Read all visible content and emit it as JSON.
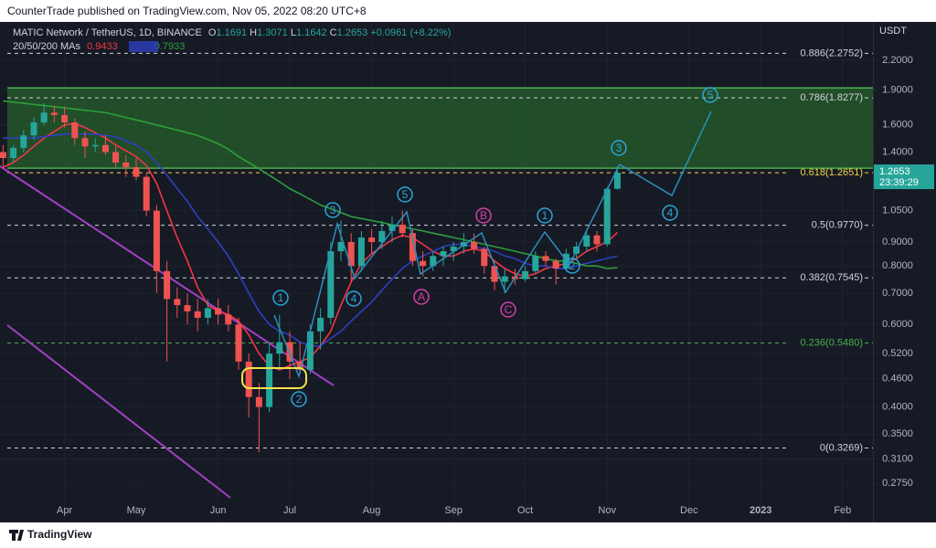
{
  "header_text": "CounterTrade published on TradingView.com, Nov 05, 2022 08:20 UTC+8",
  "footer_brand": "TradingView",
  "chart_data": {
    "type": "candlestick",
    "title": "MATIC Network / TetherUS, 1D, BINANCE",
    "ohlc_labels": [
      "O",
      "H",
      "L",
      "C"
    ],
    "change": {
      "value": 0.0961,
      "label": "+0.0961"
    },
    "change_pct": {
      "value": 8.22,
      "label": "(+8.22%)"
    },
    "ma_label": "20/50/200 MAs",
    "currency": "USDT",
    "countdown": "23:39:29",
    "log_scale": true,
    "grid": true,
    "up_color": "#26a69a",
    "down_color": "#ef5350",
    "categories": [
      null,
      null,
      null,
      null,
      null,
      null,
      "Apr",
      null,
      null,
      null,
      null,
      null,
      null,
      "May",
      null,
      null,
      null,
      null,
      null,
      null,
      null,
      "Jun",
      null,
      null,
      null,
      null,
      null,
      null,
      "Jul",
      null,
      null,
      null,
      null,
      null,
      null,
      null,
      "Aug",
      null,
      null,
      null,
      null,
      null,
      null,
      null,
      "Sep",
      null,
      null,
      null,
      null,
      null,
      null,
      "Oct",
      null,
      null,
      null,
      null,
      null,
      null,
      null,
      "Nov",
      null,
      null,
      null,
      null,
      null,
      null,
      null,
      "Dec",
      null,
      null,
      null,
      null,
      null,
      null,
      "2023",
      null,
      null,
      null,
      null,
      null,
      null,
      null,
      "Feb",
      null,
      null
    ],
    "open": [
      1.4,
      1.36,
      1.43,
      1.52,
      1.62,
      1.7,
      1.68,
      1.62,
      1.5,
      1.44,
      1.45,
      1.4,
      1.33,
      1.3,
      1.24,
      1.05,
      0.78,
      0.68,
      0.66,
      0.64,
      0.62,
      0.65,
      0.63,
      0.6,
      0.5,
      0.42,
      0.4,
      0.52,
      0.55,
      0.5,
      0.48,
      0.58,
      0.62,
      0.86,
      0.9,
      0.8,
      0.92,
      0.9,
      0.95,
      0.98,
      0.94,
      0.82,
      0.8,
      0.84,
      0.86,
      0.88,
      0.9,
      0.87,
      0.8,
      0.74,
      0.76,
      0.75,
      0.78,
      0.84,
      0.82,
      0.79,
      0.85,
      0.88,
      0.93,
      0.89,
      1.1691,
      null,
      null,
      null,
      null,
      null,
      null,
      null,
      null,
      null,
      null,
      null,
      null,
      null,
      null,
      null,
      null,
      null,
      null,
      null,
      null,
      null,
      null,
      null,
      null
    ],
    "high": [
      1.45,
      1.45,
      1.56,
      1.66,
      1.78,
      1.76,
      1.75,
      1.65,
      1.55,
      1.5,
      1.52,
      1.44,
      1.38,
      1.36,
      1.26,
      1.08,
      0.82,
      0.72,
      0.7,
      0.68,
      0.68,
      0.68,
      0.66,
      0.62,
      0.52,
      0.45,
      0.55,
      0.63,
      0.58,
      0.55,
      0.6,
      0.65,
      0.9,
      1.0,
      0.94,
      0.95,
      0.96,
      1.0,
      1.02,
      1.05,
      0.96,
      0.86,
      0.86,
      0.88,
      0.9,
      0.94,
      0.94,
      0.88,
      0.82,
      0.79,
      0.79,
      0.8,
      0.86,
      0.86,
      0.83,
      0.87,
      0.9,
      0.95,
      0.95,
      1.18,
      1.3071,
      null,
      null,
      null,
      null,
      null,
      null,
      null,
      null,
      null,
      null,
      null,
      null,
      null,
      null,
      null,
      null,
      null,
      null,
      null,
      null,
      null,
      null,
      null,
      null
    ],
    "low": [
      1.3,
      1.33,
      1.4,
      1.49,
      1.6,
      1.62,
      1.58,
      1.45,
      1.36,
      1.4,
      1.38,
      1.3,
      1.24,
      1.22,
      1.02,
      0.7,
      0.5,
      0.62,
      0.6,
      0.58,
      0.6,
      0.6,
      0.58,
      0.48,
      0.38,
      0.32,
      0.39,
      0.48,
      0.46,
      0.47,
      0.47,
      0.53,
      0.6,
      0.82,
      0.74,
      0.78,
      0.85,
      0.87,
      0.9,
      0.92,
      0.8,
      0.76,
      0.78,
      0.8,
      0.82,
      0.85,
      0.85,
      0.77,
      0.71,
      0.7,
      0.73,
      0.74,
      0.77,
      0.8,
      0.73,
      0.78,
      0.83,
      0.86,
      0.86,
      0.88,
      1.1642,
      null,
      null,
      null,
      null,
      null,
      null,
      null,
      null,
      null,
      null,
      null,
      null,
      null,
      null,
      null,
      null,
      null,
      null,
      null,
      null,
      null,
      null,
      null,
      null
    ],
    "close": [
      1.36,
      1.43,
      1.52,
      1.62,
      1.7,
      1.68,
      1.62,
      1.5,
      1.44,
      1.45,
      1.4,
      1.33,
      1.3,
      1.24,
      1.05,
      0.78,
      0.68,
      0.66,
      0.64,
      0.62,
      0.65,
      0.63,
      0.6,
      0.5,
      0.42,
      0.4,
      0.52,
      0.55,
      0.5,
      0.48,
      0.58,
      0.62,
      0.86,
      0.9,
      0.8,
      0.92,
      0.9,
      0.95,
      0.98,
      0.94,
      0.82,
      0.8,
      0.84,
      0.86,
      0.88,
      0.9,
      0.87,
      0.8,
      0.74,
      0.76,
      0.75,
      0.78,
      0.84,
      0.82,
      0.79,
      0.85,
      0.88,
      0.93,
      0.89,
      1.169,
      1.2653,
      null,
      null,
      null,
      null,
      null,
      null,
      null,
      null,
      null,
      null,
      null,
      null,
      null,
      null,
      null,
      null,
      null,
      null,
      null,
      null,
      null,
      null,
      null,
      null
    ],
    "moving_averages": [
      {
        "color": "#f23645",
        "values": [
          1.3,
          1.33,
          1.38,
          1.44,
          1.5,
          1.55,
          1.6,
          1.61,
          1.58,
          1.54,
          1.5,
          1.45,
          1.41,
          1.37,
          1.31,
          1.2,
          1.05,
          0.92,
          0.82,
          0.72,
          0.66,
          0.64,
          0.63,
          0.61,
          0.57,
          0.52,
          0.49,
          0.48,
          0.49,
          0.5,
          0.51,
          0.54,
          0.58,
          0.66,
          0.74,
          0.81,
          0.85,
          0.88,
          0.91,
          0.93,
          0.92,
          0.89,
          0.86,
          0.84,
          0.84,
          0.86,
          0.87,
          0.86,
          0.82,
          0.79,
          0.77,
          0.76,
          0.77,
          0.79,
          0.8,
          0.81,
          0.83,
          0.86,
          0.88,
          0.9,
          0.9433,
          null,
          null,
          null,
          null,
          null,
          null,
          null,
          null,
          null,
          null,
          null,
          null,
          null,
          null,
          null,
          null,
          null,
          null,
          null,
          null,
          null,
          null,
          null,
          null
        ]
      },
      {
        "color": "#2e3fbf",
        "values": [
          1.5,
          1.5,
          1.5,
          1.5,
          1.51,
          1.52,
          1.53,
          1.53,
          1.53,
          1.53,
          1.52,
          1.51,
          1.48,
          1.45,
          1.4,
          1.33,
          1.25,
          1.17,
          1.1,
          1.02,
          0.96,
          0.9,
          0.84,
          0.77,
          0.7,
          0.64,
          0.6,
          0.58,
          0.57,
          0.55,
          0.54,
          0.54,
          0.56,
          0.58,
          0.61,
          0.64,
          0.67,
          0.71,
          0.75,
          0.79,
          0.82,
          0.84,
          0.86,
          0.88,
          0.89,
          0.89,
          0.88,
          0.87,
          0.86,
          0.84,
          0.83,
          0.81,
          0.8,
          0.8,
          0.79,
          0.79,
          0.8,
          0.81,
          0.82,
          0.83,
          0.84,
          null,
          null,
          null,
          null,
          null,
          null,
          null,
          null,
          null,
          null,
          null,
          null,
          null,
          null,
          null,
          null,
          null,
          null,
          null,
          null,
          null,
          null,
          null,
          null
        ]
      },
      {
        "color": "#2e9e3a",
        "values": [
          1.8,
          1.79,
          1.78,
          1.77,
          1.76,
          1.75,
          1.74,
          1.73,
          1.72,
          1.71,
          1.7,
          1.68,
          1.66,
          1.64,
          1.62,
          1.6,
          1.58,
          1.56,
          1.54,
          1.52,
          1.49,
          1.46,
          1.42,
          1.37,
          1.33,
          1.29,
          1.25,
          1.21,
          1.17,
          1.14,
          1.11,
          1.08,
          1.06,
          1.04,
          1.02,
          1.01,
          1.0,
          0.99,
          0.98,
          0.97,
          0.96,
          0.95,
          0.94,
          0.93,
          0.92,
          0.91,
          0.9,
          0.89,
          0.88,
          0.87,
          0.86,
          0.85,
          0.84,
          0.83,
          0.82,
          0.82,
          0.81,
          0.8,
          0.8,
          0.79,
          0.7933,
          null,
          null,
          null,
          null,
          null,
          null,
          null,
          null,
          null,
          null,
          null,
          null,
          null,
          null,
          null,
          null,
          null,
          null,
          null,
          null,
          null,
          null,
          null,
          null
        ]
      }
    ],
    "zone": {
      "low": 1.294,
      "high": 1.92,
      "color": "#2e8b2e"
    },
    "fib_levels": [
      {
        "value": 2.2752,
        "label": "0.886(2.2752)",
        "color": "#d1d4dc"
      },
      {
        "value": 1.8277,
        "label": "0.786(1.8277)",
        "color": "#d1d4dc"
      },
      {
        "value": 1.2651,
        "label": "0.618(1.2651)",
        "color": "#f5d547"
      },
      {
        "value": 0.977,
        "label": "0.5(0.9770)",
        "color": "#d1d4dc"
      },
      {
        "value": 0.7545,
        "label": "0.382(0.7545)",
        "color": "#d1d4dc"
      },
      {
        "value": 0.548,
        "label": "0.236(0.5480)",
        "color": "#4caf50"
      },
      {
        "value": 0.3269,
        "label": "0(0.3269)",
        "color": "#d1d4dc"
      }
    ],
    "wave_labels": [
      "1",
      "2",
      "3",
      "4",
      "5",
      "A",
      "B",
      "C",
      "1",
      "2",
      "3",
      "4",
      "5"
    ],
    "ylim": [
      0.256,
      2.655
    ],
    "yticks": [
      {
        "value": 2.2,
        "label": "2.2000"
      },
      {
        "value": 1.9,
        "label": "1.9000"
      },
      {
        "value": 1.6,
        "label": "1.6000"
      },
      {
        "value": 1.4,
        "label": "1.4000"
      },
      {
        "value": 1.05,
        "label": "1.0500"
      },
      {
        "value": 0.9,
        "label": "0.9000"
      },
      {
        "value": 0.8,
        "label": "0.8000"
      },
      {
        "value": 0.7,
        "label": "0.7000"
      },
      {
        "value": 0.6,
        "label": "0.6000"
      },
      {
        "value": 0.52,
        "label": "0.5200"
      },
      {
        "value": 0.46,
        "label": "0.4600"
      },
      {
        "value": 0.4,
        "label": "0.4000"
      },
      {
        "value": 0.35,
        "label": "0.3500"
      },
      {
        "value": 0.31,
        "label": "0.3100"
      },
      {
        "value": 0.275,
        "label": "0.2750"
      }
    ]
  }
}
